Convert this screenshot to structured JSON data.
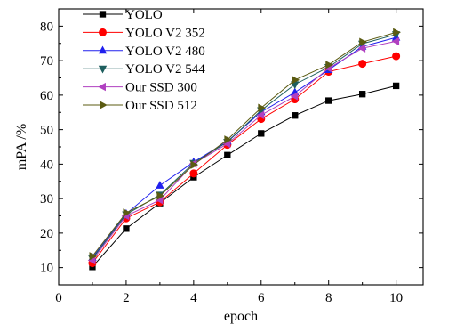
{
  "chart_data": {
    "type": "line",
    "title": "",
    "xlabel": "epoch",
    "ylabel": "mPA /%",
    "xlim": [
      0,
      10.8
    ],
    "ylim": [
      5,
      85
    ],
    "xticks": [
      0,
      2,
      4,
      6,
      8,
      10
    ],
    "yticks": [
      10,
      20,
      30,
      40,
      50,
      60,
      70,
      80
    ],
    "grid": false,
    "legend_position": "top-left",
    "x": [
      1,
      2,
      3,
      4,
      5,
      6,
      7,
      8,
      9,
      10
    ],
    "series": [
      {
        "name": "YOLO",
        "color": "#000000",
        "marker": "square",
        "values": [
          10.2,
          21.3,
          28.7,
          36.2,
          42.6,
          48.9,
          54.1,
          58.4,
          60.3,
          62.7
        ]
      },
      {
        "name": "YOLO V2 352",
        "color": "#ff0000",
        "marker": "circle",
        "values": [
          11.3,
          24.3,
          29.0,
          37.3,
          45.6,
          53.1,
          58.8,
          66.8,
          69.1,
          71.3
        ]
      },
      {
        "name": "YOLO V2 480",
        "color": "#2020ee",
        "marker": "triangle-up",
        "values": [
          12.9,
          25.6,
          33.8,
          40.6,
          46.6,
          55.1,
          60.8,
          67.3,
          74.1,
          76.7
        ]
      },
      {
        "name": "YOLO V2 544",
        "color": "#1e5f5f",
        "marker": "triangle-down",
        "values": [
          12.6,
          25.4,
          31.1,
          40.3,
          46.4,
          55.6,
          63.1,
          68.1,
          74.9,
          77.6
        ]
      },
      {
        "name": "Our SSD 300",
        "color": "#b040c0",
        "marker": "triangle-left",
        "values": [
          12.1,
          25.0,
          29.6,
          40.1,
          45.9,
          54.2,
          59.7,
          67.8,
          73.6,
          75.6
        ]
      },
      {
        "name": "Our SSD 512",
        "color": "#5b5b12",
        "marker": "triangle-right",
        "values": [
          13.3,
          25.9,
          30.8,
          39.8,
          47.1,
          56.3,
          64.4,
          68.8,
          75.4,
          78.2
        ]
      }
    ]
  }
}
